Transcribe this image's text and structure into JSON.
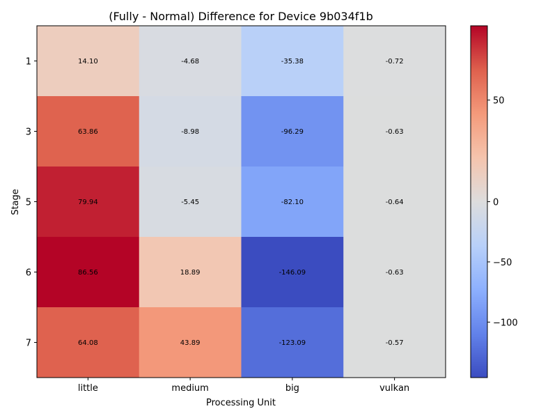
{
  "chart_data": {
    "type": "heatmap",
    "title": "(Fully - Normal) Difference for Device 9b034f1b",
    "xlabel": "Processing Unit",
    "ylabel": "Stage",
    "x_categories": [
      "little",
      "medium",
      "big",
      "vulkan"
    ],
    "y_categories": [
      "1",
      "3",
      "5",
      "6",
      "7"
    ],
    "values": [
      [
        14.1,
        -4.68,
        -35.38,
        -0.72
      ],
      [
        63.86,
        -8.98,
        -96.29,
        -0.63
      ],
      [
        79.94,
        -5.45,
        -82.1,
        -0.64
      ],
      [
        86.56,
        18.89,
        -146.09,
        -0.63
      ],
      [
        64.08,
        43.89,
        -123.09,
        -0.57
      ]
    ],
    "value_labels": [
      [
        "14.10",
        "-4.68",
        "-35.38",
        "-0.72"
      ],
      [
        "63.86",
        "-8.98",
        "-96.29",
        "-0.63"
      ],
      [
        "79.94",
        "-5.45",
        "-82.10",
        "-0.64"
      ],
      [
        "86.56",
        "18.89",
        "-146.09",
        "-0.63"
      ],
      [
        "64.08",
        "43.89",
        "-123.09",
        "-0.57"
      ]
    ],
    "colormap": "coolwarm",
    "colorbar": {
      "min": -146.09,
      "max": 86.56,
      "ticks": [
        50,
        0,
        -50,
        -100
      ],
      "tick_labels": [
        "50",
        "0",
        "−50",
        "−100"
      ]
    },
    "grid": false
  }
}
